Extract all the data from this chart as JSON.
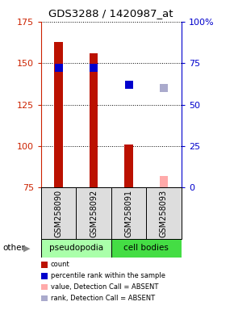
{
  "title": "GDS3288 / 1420987_at",
  "samples": [
    "GSM258090",
    "GSM258092",
    "GSM258091",
    "GSM258093"
  ],
  "groups": [
    "pseudopodia",
    "pseudopodia",
    "cell bodies",
    "cell bodies"
  ],
  "bar_bottom": 75,
  "bar_values": [
    163,
    156,
    101,
    75
  ],
  "bar_color": "#bb1100",
  "absent_bar_values": [
    null,
    null,
    null,
    82
  ],
  "absent_bar_color": "#ffaaaa",
  "rank_right_values": [
    72,
    72,
    62,
    null
  ],
  "rank_color": "#0000cc",
  "absent_rank_right_values": [
    null,
    null,
    null,
    60
  ],
  "absent_rank_color": "#aaaacc",
  "ylim_left": [
    75,
    175
  ],
  "ylim_right": [
    0,
    100
  ],
  "yticks_left": [
    75,
    100,
    125,
    150,
    175
  ],
  "yticks_right": [
    0,
    25,
    50,
    75,
    100
  ],
  "ytick_labels_right": [
    "0",
    "25",
    "50",
    "75",
    "100%"
  ],
  "left_axis_color": "#cc2200",
  "right_axis_color": "#0000cc",
  "group_colors": {
    "pseudopodia": "#aaffaa",
    "cell bodies": "#44dd44"
  },
  "bar_width": 0.25,
  "legend_items": [
    {
      "color": "#bb1100",
      "label": "count"
    },
    {
      "color": "#0000cc",
      "label": "percentile rank within the sample"
    },
    {
      "color": "#ffaaaa",
      "label": "value, Detection Call = ABSENT"
    },
    {
      "color": "#aaaacc",
      "label": "rank, Detection Call = ABSENT"
    }
  ]
}
